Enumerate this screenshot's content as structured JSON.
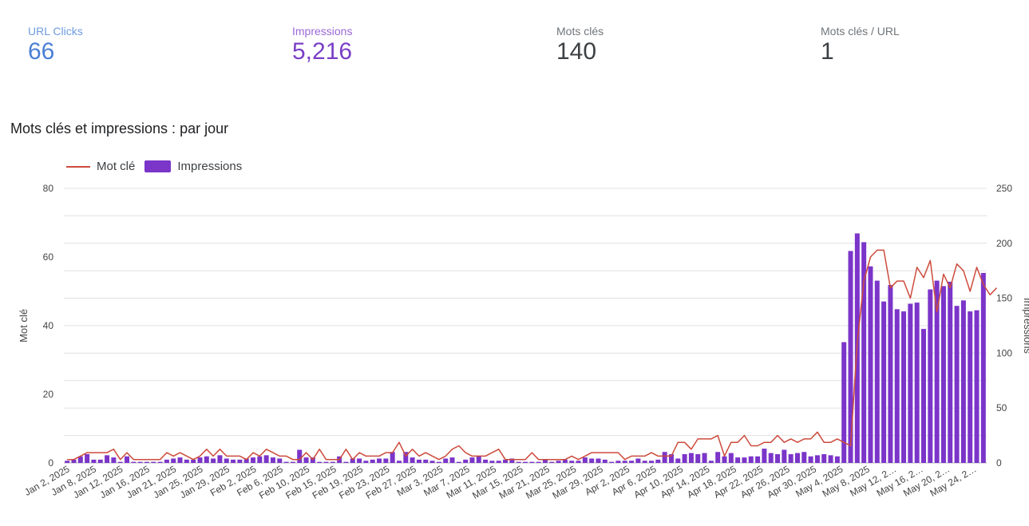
{
  "kpis": [
    {
      "label": "URL Clicks",
      "value": "66",
      "color": "#4a7fd6",
      "label_color": "#6e9be0"
    },
    {
      "label": "Impressions",
      "value": "5,216",
      "color": "#7a3fc7",
      "label_color": "#9a68d6"
    },
    {
      "label": "Mots clés",
      "value": "140",
      "color": "#3c4043",
      "label_color": "#70757a"
    },
    {
      "label": "Mots clés / URL",
      "value": "1",
      "color": "#3c4043",
      "label_color": "#70757a"
    }
  ],
  "chart_title": "Mots clés et impressions : par jour",
  "colors": {
    "line": "#cc4b3c",
    "bar": "#7b35c9",
    "grid": "#e0e0e0"
  },
  "chart_data": {
    "type": "bar",
    "title": "Mots clés et impressions : par jour",
    "legend": {
      "placement": "top-left",
      "entries": [
        "Mot clé",
        "Impressions"
      ]
    },
    "ylabel": "Mot clé",
    "y2label": "Impressions",
    "ylim": [
      0,
      80
    ],
    "y2lim": [
      0,
      250
    ],
    "yticks": [
      "80",
      "60",
      "40",
      "20",
      "0"
    ],
    "y2ticks": [
      "250",
      "200",
      "150",
      "100",
      "50",
      "0"
    ],
    "grid": true,
    "x_tick_labels": [
      "Jan 2, 2025",
      "Jan 8, 2025",
      "Jan 12, 2025",
      "Jan 16, 2025",
      "Jan 21, 2025",
      "Jan 25, 2025",
      "Jan 29, 2025",
      "Feb 2, 2025",
      "Feb 6, 2025",
      "Feb 10, 2025",
      "Feb 15, 2025",
      "Feb 19, 2025",
      "Feb 23, 2025",
      "Feb 27, 2025",
      "Mar 3, 2025",
      "Mar 7, 2025",
      "Mar 11, 2025",
      "Mar 15, 2025",
      "Mar 21, 2025",
      "Mar 25, 2025",
      "Mar 29, 2025",
      "Apr 2, 2025",
      "Apr 6, 2025",
      "Apr 10, 2025",
      "Apr 14, 2025",
      "Apr 18, 2025",
      "Apr 22, 2025",
      "Apr 26, 2025",
      "Apr 30, 2025",
      "May 4, 2025",
      "May 8, 2025",
      "May 12, 2…",
      "May 16, 2…",
      "May 20, 2…",
      "May 24, 2…"
    ],
    "series": [
      {
        "name": "Mot clé",
        "type": "line",
        "axis": "left",
        "values": [
          1,
          1,
          2,
          3,
          3,
          3,
          3,
          4,
          1,
          3,
          1,
          1,
          1,
          1,
          1,
          3,
          2,
          3,
          2,
          1,
          2,
          4,
          2,
          4,
          2,
          2,
          2,
          1,
          3,
          2,
          4,
          3,
          2,
          2,
          1,
          1,
          3,
          1,
          4,
          1,
          1,
          1,
          4,
          1,
          3,
          2,
          2,
          2,
          3,
          3,
          6,
          2,
          4,
          2,
          3,
          2,
          1,
          2,
          4,
          5,
          3,
          2,
          2,
          2,
          3,
          4,
          1,
          1,
          1,
          1,
          3,
          1,
          1,
          1,
          1,
          1,
          2,
          1,
          2,
          3,
          3,
          3,
          3,
          3,
          1,
          2,
          2,
          2,
          3,
          2,
          2,
          2,
          6,
          6,
          4,
          7,
          7,
          7,
          8,
          2,
          6,
          6,
          8,
          5,
          5,
          6,
          6,
          8,
          6,
          7,
          6,
          7,
          7,
          9,
          6,
          6,
          7,
          6,
          5,
          35,
          53,
          60,
          62,
          62,
          51,
          53,
          53,
          48,
          57,
          54,
          59,
          44,
          55,
          51,
          58,
          56,
          50,
          57,
          52,
          49,
          51
        ]
      },
      {
        "name": "Impressions",
        "type": "bar",
        "axis": "right",
        "values": [
          2,
          3,
          6,
          8,
          3,
          3,
          7,
          5,
          1,
          6,
          1,
          1,
          1,
          1,
          1,
          3,
          4,
          5,
          3,
          3,
          5,
          6,
          4,
          7,
          4,
          3,
          3,
          4,
          5,
          6,
          7,
          5,
          4,
          1,
          1,
          12,
          5,
          5,
          1,
          1,
          1,
          6,
          1,
          4,
          4,
          2,
          3,
          4,
          4,
          10,
          2,
          10,
          5,
          3,
          3,
          2,
          1,
          4,
          5,
          1,
          3,
          5,
          6,
          3,
          2,
          2,
          3,
          4,
          1,
          1,
          1,
          1,
          3,
          1,
          2,
          3,
          2,
          2,
          5,
          4,
          4,
          3,
          1,
          2,
          2,
          2,
          4,
          2,
          2,
          3,
          10,
          8,
          4,
          8,
          9,
          8,
          9,
          2,
          10,
          6,
          9,
          5,
          5,
          6,
          6,
          13,
          9,
          8,
          12,
          8,
          9,
          10,
          6,
          7,
          8,
          7,
          6,
          110,
          193,
          209,
          201,
          179,
          166,
          147,
          162,
          140,
          138,
          145,
          146,
          122,
          158,
          166,
          161,
          165,
          143,
          148,
          138,
          139,
          173
        ]
      }
    ]
  }
}
